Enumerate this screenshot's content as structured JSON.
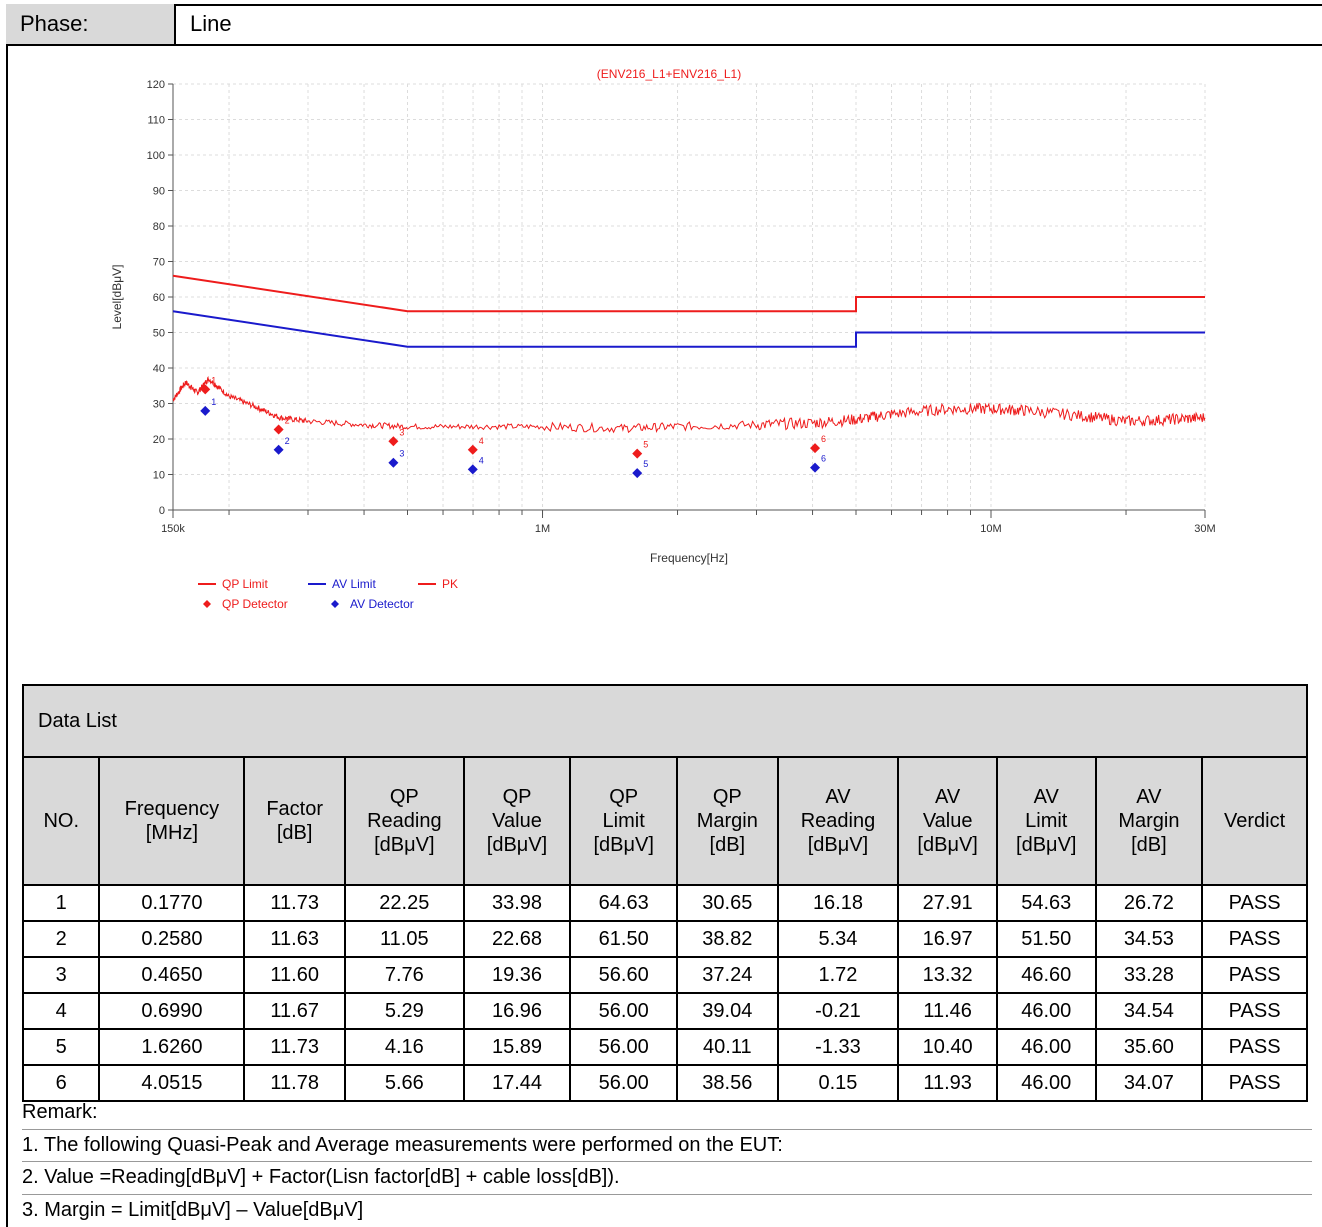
{
  "phase": {
    "label": "Phase:",
    "value": "Line"
  },
  "chart_data": {
    "type": "line",
    "title": "(ENV216_L1+ENV216_L1)",
    "xlabel": "Frequency[Hz]",
    "ylabel": "Level[dBμV]",
    "x_scale": "log",
    "xlim": [
      150000,
      30000000
    ],
    "ylim": [
      0,
      120
    ],
    "x_tick_labels": [
      {
        "value": 150000,
        "label": "150k"
      },
      {
        "value": 1000000,
        "label": "1M"
      },
      {
        "value": 10000000,
        "label": "10M"
      },
      {
        "value": 30000000,
        "label": "30M"
      }
    ],
    "y_ticks": [
      0,
      10,
      20,
      30,
      40,
      50,
      60,
      70,
      80,
      90,
      100,
      110,
      120
    ],
    "grid": true,
    "legend_position": "bottom-left",
    "colors": {
      "red": "#ee1c1c",
      "blue": "#1a1acc"
    },
    "series": [
      {
        "name": "QP Limit",
        "kind": "line",
        "color": "#ee1c1c",
        "points": [
          [
            150000,
            66
          ],
          [
            500000,
            56
          ],
          [
            5000000,
            56
          ],
          [
            5000000,
            60
          ],
          [
            30000000,
            60
          ]
        ]
      },
      {
        "name": "AV Limit",
        "kind": "line",
        "color": "#1a1acc",
        "points": [
          [
            150000,
            56
          ],
          [
            500000,
            46
          ],
          [
            5000000,
            46
          ],
          [
            5000000,
            50
          ],
          [
            30000000,
            50
          ]
        ]
      },
      {
        "name": "PK",
        "kind": "line",
        "color": "#ee1c1c",
        "points": [
          [
            150000,
            31
          ],
          [
            160000,
            36
          ],
          [
            170000,
            33
          ],
          [
            180000,
            37
          ],
          [
            200000,
            32
          ],
          [
            230000,
            29
          ],
          [
            260000,
            26
          ],
          [
            300000,
            25
          ],
          [
            400000,
            24
          ],
          [
            500000,
            23.5
          ],
          [
            700000,
            23.5
          ],
          [
            1000000,
            23.5
          ],
          [
            1500000,
            23
          ],
          [
            2000000,
            23.5
          ],
          [
            3000000,
            24
          ],
          [
            4000000,
            24.5
          ],
          [
            5000000,
            25.5
          ],
          [
            6000000,
            27
          ],
          [
            8000000,
            28.5
          ],
          [
            10000000,
            28.5
          ],
          [
            12000000,
            28
          ],
          [
            16000000,
            26.5
          ],
          [
            20000000,
            25
          ],
          [
            25000000,
            25.5
          ],
          [
            30000000,
            26
          ]
        ]
      },
      {
        "name": "QP Detector",
        "kind": "marker",
        "color": "#ee1c1c",
        "points": [
          [
            177000,
            33.98
          ],
          [
            258000,
            22.68
          ],
          [
            465000,
            19.36
          ],
          [
            699000,
            16.96
          ],
          [
            1626000,
            15.89
          ],
          [
            4051500,
            17.44
          ]
        ],
        "labels": [
          "1",
          "2",
          "3",
          "4",
          "5",
          "6"
        ]
      },
      {
        "name": "AV Detector",
        "kind": "marker",
        "color": "#1a1acc",
        "points": [
          [
            177000,
            27.91
          ],
          [
            258000,
            16.97
          ],
          [
            465000,
            13.32
          ],
          [
            699000,
            11.46
          ],
          [
            1626000,
            10.4
          ],
          [
            4051500,
            11.93
          ]
        ],
        "labels": [
          "1",
          "2",
          "3",
          "4",
          "5",
          "6"
        ]
      }
    ]
  },
  "table": {
    "title": "Data List",
    "headers": [
      [
        "NO."
      ],
      [
        "Frequency",
        "[MHz]"
      ],
      [
        "Factor",
        "[dB]"
      ],
      [
        "QP",
        "Reading",
        "[dBμV]"
      ],
      [
        "QP",
        "Value",
        "[dBμV]"
      ],
      [
        "QP",
        "Limit",
        "[dBμV]"
      ],
      [
        "QP",
        "Margin",
        "[dB]"
      ],
      [
        "AV",
        "Reading",
        "[dBμV]"
      ],
      [
        "AV",
        "Value",
        "[dBμV]"
      ],
      [
        "AV",
        "Limit",
        "[dBμV]"
      ],
      [
        "AV",
        "Margin",
        "[dB]"
      ],
      [
        "Verdict"
      ]
    ],
    "rows": [
      [
        "1",
        "0.1770",
        "11.73",
        "22.25",
        "33.98",
        "64.63",
        "30.65",
        "16.18",
        "27.91",
        "54.63",
        "26.72",
        "PASS"
      ],
      [
        "2",
        "0.2580",
        "11.63",
        "11.05",
        "22.68",
        "61.50",
        "38.82",
        "5.34",
        "16.97",
        "51.50",
        "34.53",
        "PASS"
      ],
      [
        "3",
        "0.4650",
        "11.60",
        "7.76",
        "19.36",
        "56.60",
        "37.24",
        "1.72",
        "13.32",
        "46.60",
        "33.28",
        "PASS"
      ],
      [
        "4",
        "0.6990",
        "11.67",
        "5.29",
        "16.96",
        "56.00",
        "39.04",
        "-0.21",
        "11.46",
        "46.00",
        "34.54",
        "PASS"
      ],
      [
        "5",
        "1.6260",
        "11.73",
        "4.16",
        "15.89",
        "56.00",
        "40.11",
        "-1.33",
        "10.40",
        "46.00",
        "35.60",
        "PASS"
      ],
      [
        "6",
        "4.0515",
        "11.78",
        "5.66",
        "17.44",
        "56.00",
        "38.56",
        "0.15",
        "11.93",
        "46.00",
        "34.07",
        "PASS"
      ]
    ]
  },
  "remarks": {
    "heading": "Remark:",
    "lines": [
      "1. The following Quasi-Peak and Average measurements were performed on the EUT:",
      "2. Value =Reading[dBμV] + Factor(Lisn factor[dB] + cable loss[dB]).",
      "3. Margin = Limit[dBμV] – Value[dBμV]"
    ]
  }
}
